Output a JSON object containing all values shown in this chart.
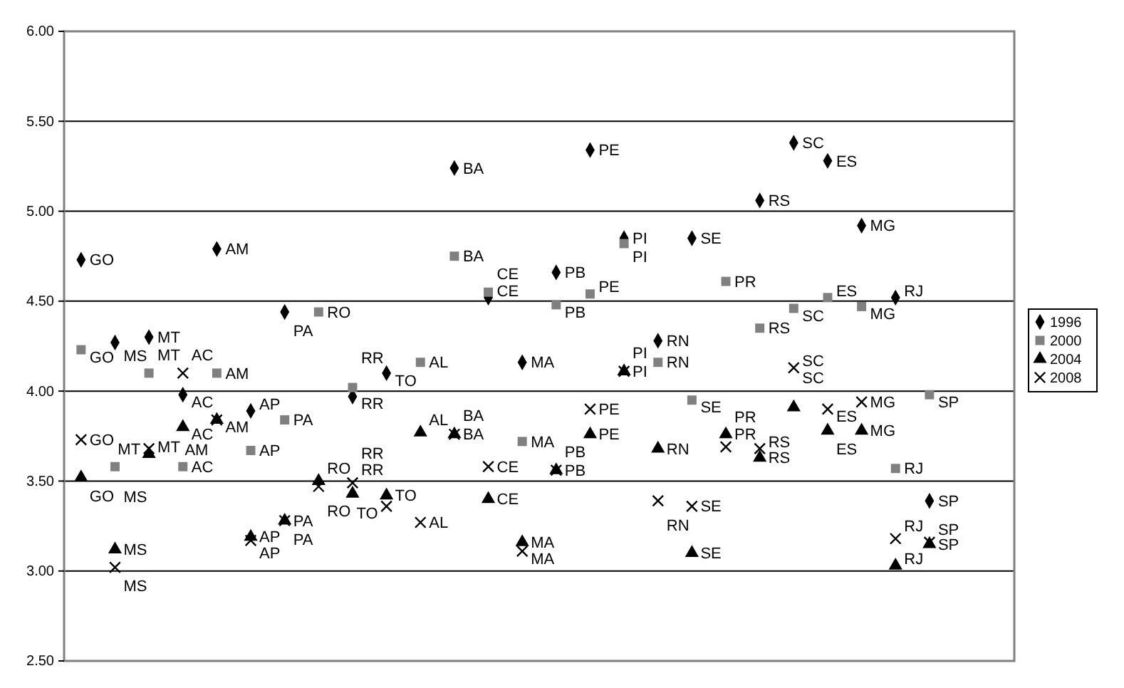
{
  "chart_data": {
    "type": "scatter",
    "categories": [
      null,
      null,
      null,
      null,
      null,
      null,
      null,
      null,
      null,
      null,
      null,
      null,
      null,
      null,
      null,
      null,
      null,
      null,
      null,
      null,
      null,
      null,
      null,
      null,
      null,
      null,
      null,
      null
    ],
    "tick_labels": "y",
    "ylim": [
      2.5,
      6
    ],
    "yticks": [
      {
        "value": 2.5,
        "label": "2.50"
      },
      {
        "value": 3,
        "label": "3.00"
      },
      {
        "value": 3.5,
        "label": "3.50"
      },
      {
        "value": 4,
        "label": "4.00"
      },
      {
        "value": 4.5,
        "label": "4.50"
      },
      {
        "value": 5,
        "label": "5.00"
      },
      {
        "value": 5.5,
        "label": "5.50"
      },
      {
        "value": 6,
        "label": "6.00"
      }
    ],
    "grid": "y",
    "legend": "right",
    "series": [
      {
        "name": "1996",
        "color": "#000000",
        "marker": "diamond",
        "values": [
          4.73,
          4.27,
          4.3,
          3.98,
          4.79,
          3.89,
          4.44,
          null,
          3.97,
          4.1,
          null,
          5.24,
          4.52,
          4.16,
          4.66,
          5.34,
          4.85,
          4.28,
          4.85,
          null,
          5.06,
          5.38,
          5.28,
          4.92,
          4.52,
          3.39,
          null,
          null
        ],
        "value_labels": [
          "GO",
          "MS",
          "MT",
          "AC",
          "AM",
          "AP",
          "PA",
          null,
          "RR",
          "TO",
          null,
          "BA",
          "CE",
          "MA",
          "PB",
          "PE",
          "PI",
          "RN",
          "SE",
          null,
          "RS",
          "SC",
          "ES",
          "MG",
          "RJ",
          "SP",
          null,
          null
        ]
      },
      {
        "name": "2000",
        "color": "#808080",
        "marker": "square",
        "values": [
          4.23,
          3.58,
          4.1,
          3.58,
          4.1,
          3.67,
          3.84,
          4.44,
          4.02,
          null,
          4.16,
          4.75,
          4.55,
          3.72,
          4.48,
          4.54,
          4.82,
          4.16,
          3.95,
          4.61,
          4.35,
          4.46,
          4.52,
          4.47,
          3.57,
          3.98,
          null,
          null
        ],
        "value_labels": [
          "GO",
          "MS",
          "MT",
          "AC",
          "AM",
          "AP",
          "PA",
          "RO",
          "RR",
          null,
          "AL",
          "BA",
          "CE",
          "MA",
          "PB",
          "PE",
          "PI",
          "RN",
          "SE",
          "PR",
          "RS",
          "SC",
          "ES",
          "MG",
          "RJ",
          "SP",
          null,
          null
        ]
      },
      {
        "name": "2004",
        "color": "#000000",
        "marker": "triangle",
        "values": [
          3.52,
          3.12,
          3.65,
          3.8,
          3.84,
          3.19,
          3.28,
          3.5,
          3.43,
          3.42,
          3.77,
          3.76,
          3.4,
          3.16,
          3.56,
          3.76,
          4.11,
          3.68,
          3.1,
          3.76,
          3.63,
          3.91,
          3.78,
          3.78,
          3.03,
          3.15,
          null,
          null
        ],
        "value_labels": [
          "GO",
          "MS",
          "MT",
          "AC",
          "AM",
          "AP",
          "PA",
          "RO",
          "RR",
          "TO",
          "AL",
          "BA",
          "CE",
          "MA",
          "PB",
          "PE",
          "PI",
          "RN",
          "SE",
          "PR",
          "RS",
          "SC",
          "ES",
          "MG",
          "RJ",
          "SP",
          null,
          null
        ]
      },
      {
        "name": "2008",
        "color": "#000000",
        "marker": "cross",
        "values": [
          3.73,
          3.02,
          3.68,
          4.1,
          3.84,
          3.17,
          3.28,
          3.47,
          3.49,
          3.36,
          3.27,
          3.76,
          3.58,
          3.11,
          3.56,
          3.9,
          4.11,
          3.39,
          3.36,
          3.69,
          3.68,
          4.13,
          3.9,
          3.94,
          3.18,
          3.16,
          null,
          null
        ],
        "value_labels": [
          "GO",
          "MS",
          "MT",
          "AC",
          "AM",
          "AP",
          "PA",
          "RO",
          "RR",
          "TO",
          "AL",
          "BA",
          "CE",
          "MA",
          "PB",
          "PE",
          "PI",
          "RN",
          "SE",
          "PR",
          "RS",
          "SC",
          "ES",
          "MG",
          "RJ",
          "SP",
          null,
          null
        ]
      }
    ]
  }
}
